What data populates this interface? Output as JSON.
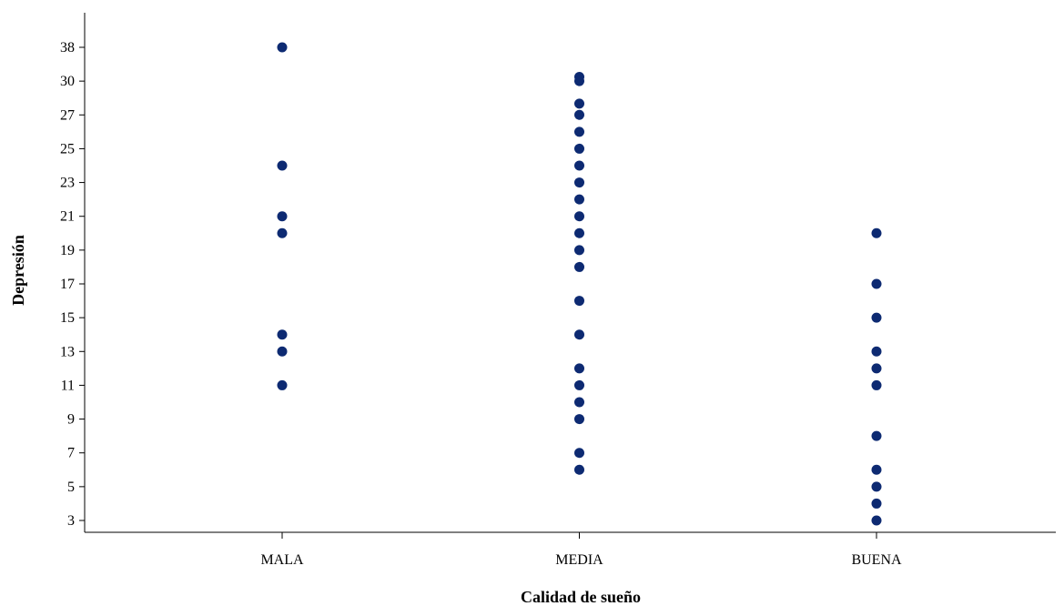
{
  "chart_data": {
    "type": "scatter",
    "xlabel": "Calidad de sueño",
    "ylabel": "Depresión",
    "categories": [
      "MALA",
      "MEDIA",
      "BUENA"
    ],
    "y_ticks": [
      "3",
      "5",
      "7",
      "9",
      "11",
      "13",
      "15",
      "17",
      "19",
      "21",
      "23",
      "25",
      "27",
      "30",
      "38"
    ],
    "point_color": "#0d2a72",
    "grid": false,
    "legend": "none",
    "points": [
      {
        "x": "MALA",
        "y": "38"
      },
      {
        "x": "MALA",
        "y": "24"
      },
      {
        "x": "MALA",
        "y": "21"
      },
      {
        "x": "MALA",
        "y": "20"
      },
      {
        "x": "MALA",
        "y": "14"
      },
      {
        "x": "MALA",
        "y": "13"
      },
      {
        "x": "MALA",
        "y": "11"
      },
      {
        "x": "MEDIA",
        "y": "31"
      },
      {
        "x": "MEDIA",
        "y": "30"
      },
      {
        "x": "MEDIA",
        "y": "28"
      },
      {
        "x": "MEDIA",
        "y": "27"
      },
      {
        "x": "MEDIA",
        "y": "26"
      },
      {
        "x": "MEDIA",
        "y": "25"
      },
      {
        "x": "MEDIA",
        "y": "24"
      },
      {
        "x": "MEDIA",
        "y": "23"
      },
      {
        "x": "MEDIA",
        "y": "22"
      },
      {
        "x": "MEDIA",
        "y": "21"
      },
      {
        "x": "MEDIA",
        "y": "20"
      },
      {
        "x": "MEDIA",
        "y": "19"
      },
      {
        "x": "MEDIA",
        "y": "18"
      },
      {
        "x": "MEDIA",
        "y": "16"
      },
      {
        "x": "MEDIA",
        "y": "14"
      },
      {
        "x": "MEDIA",
        "y": "12"
      },
      {
        "x": "MEDIA",
        "y": "11"
      },
      {
        "x": "MEDIA",
        "y": "10"
      },
      {
        "x": "MEDIA",
        "y": "9"
      },
      {
        "x": "MEDIA",
        "y": "7"
      },
      {
        "x": "MEDIA",
        "y": "6"
      },
      {
        "x": "BUENA",
        "y": "20"
      },
      {
        "x": "BUENA",
        "y": "17"
      },
      {
        "x": "BUENA",
        "y": "15"
      },
      {
        "x": "BUENA",
        "y": "13"
      },
      {
        "x": "BUENA",
        "y": "12"
      },
      {
        "x": "BUENA",
        "y": "11"
      },
      {
        "x": "BUENA",
        "y": "8"
      },
      {
        "x": "BUENA",
        "y": "6"
      },
      {
        "x": "BUENA",
        "y": "5"
      },
      {
        "x": "BUENA",
        "y": "4"
      },
      {
        "x": "BUENA",
        "y": "3"
      }
    ]
  }
}
